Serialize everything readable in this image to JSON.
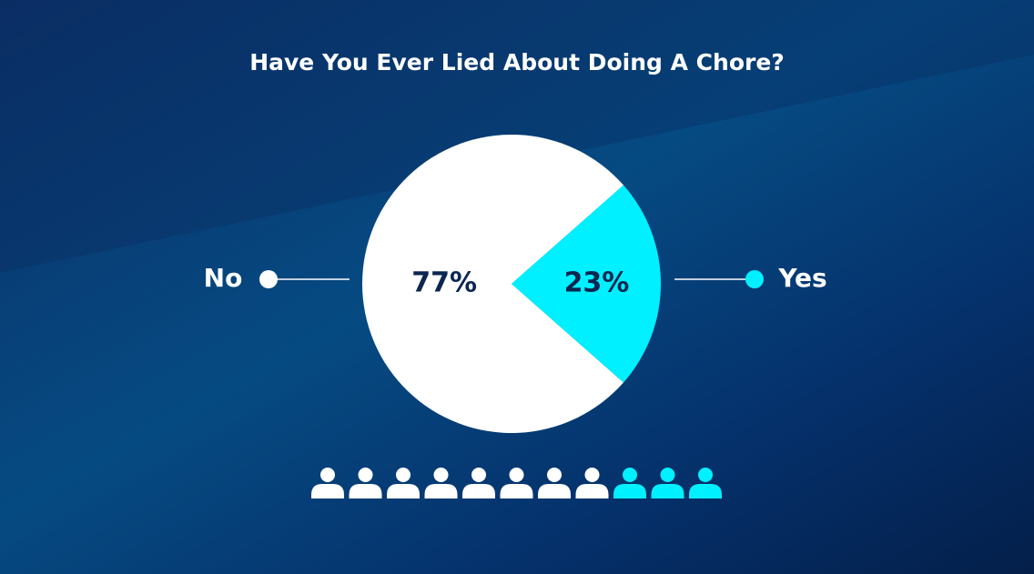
{
  "chart_data": {
    "type": "pie",
    "title": "Have You Ever Lied About Doing A Chore?",
    "categories": [
      "No",
      "Yes"
    ],
    "values": [
      77,
      23
    ],
    "value_labels": [
      "77%",
      "23%"
    ],
    "colors": [
      "#ffffff",
      "#00f0ff"
    ]
  }
}
